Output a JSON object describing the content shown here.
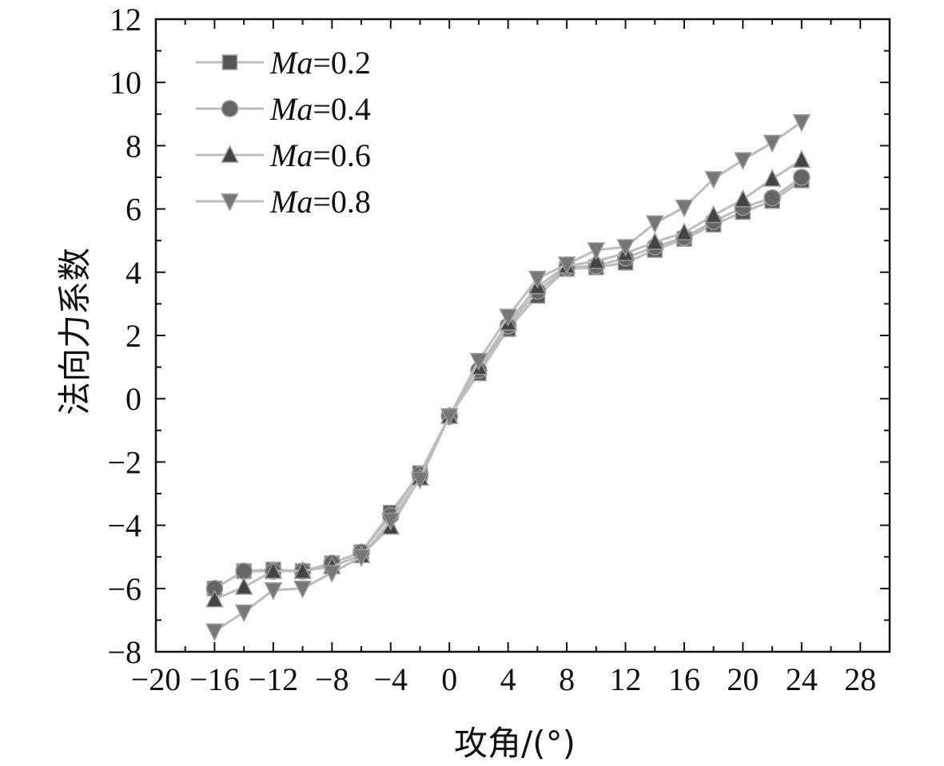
{
  "chart_data": {
    "type": "line",
    "xlabel": "攻角/(°)",
    "ylabel": "法向力系数",
    "xlim": [
      -20,
      30
    ],
    "ylim": [
      -8,
      12
    ],
    "x_ticks": [
      "−20",
      "−16",
      "−12",
      "−8",
      "−4",
      "0",
      "4",
      "8",
      "12",
      "16",
      "20",
      "24",
      "28"
    ],
    "y_ticks": [
      "−8",
      "−6",
      "−4",
      "−2",
      "0",
      "2",
      "4",
      "6",
      "8",
      "10",
      "12"
    ],
    "x": [
      -16,
      -14,
      -12,
      -10,
      -8,
      -6,
      -4,
      -2,
      0,
      2,
      4,
      6,
      8,
      10,
      12,
      14,
      16,
      18,
      20,
      22,
      24
    ],
    "series": [
      {
        "name_italic": "Ma",
        "name_rest": "=0.2",
        "marker": "square",
        "color": "#555555",
        "values": [
          -6.0,
          -5.45,
          -5.4,
          -5.45,
          -5.2,
          -4.85,
          -3.6,
          -2.35,
          -0.55,
          0.8,
          2.2,
          3.25,
          4.1,
          4.15,
          4.3,
          4.7,
          5.05,
          5.5,
          5.9,
          6.25,
          6.9
        ]
      },
      {
        "name_italic": "Ma",
        "name_rest": "=0.4",
        "marker": "circle",
        "color": "#666666",
        "values": [
          -6.0,
          -5.45,
          -5.45,
          -5.45,
          -5.2,
          -4.85,
          -3.7,
          -2.4,
          -0.55,
          0.9,
          2.3,
          3.4,
          4.15,
          4.2,
          4.45,
          4.8,
          5.1,
          5.6,
          6.05,
          6.35,
          7.0
        ]
      },
      {
        "name_italic": "Ma",
        "name_rest": "=0.6",
        "marker": "triangle-up",
        "color": "#444444",
        "values": [
          -6.35,
          -5.95,
          -5.45,
          -5.45,
          -5.3,
          -4.95,
          -4.05,
          -2.5,
          -0.55,
          1.0,
          2.4,
          3.55,
          4.2,
          4.35,
          4.6,
          4.95,
          5.25,
          5.8,
          6.3,
          6.95,
          7.55
        ]
      },
      {
        "name_italic": "Ma",
        "name_rest": "=0.8",
        "marker": "triangle-down",
        "color": "#777777",
        "values": [
          -7.35,
          -6.75,
          -6.05,
          -6.0,
          -5.5,
          -5.0,
          -3.85,
          -2.55,
          -0.55,
          1.2,
          2.6,
          3.8,
          4.25,
          4.7,
          4.8,
          5.55,
          6.05,
          6.95,
          7.55,
          8.1,
          8.75
        ]
      }
    ],
    "legend_position": "top-left",
    "grid": false
  }
}
